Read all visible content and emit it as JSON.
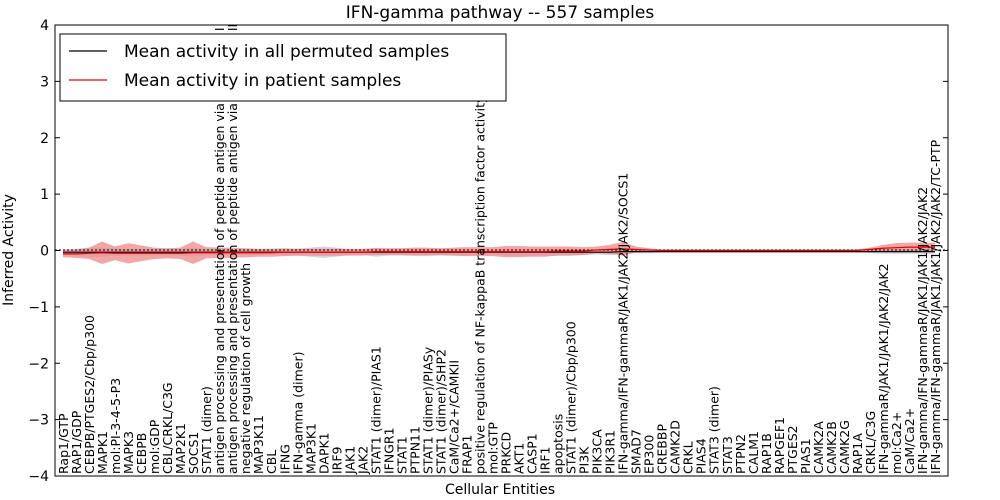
{
  "chart_data": {
    "type": "line",
    "title": "IFN-gamma pathway -- 557 samples",
    "xlabel": "Cellular Entities",
    "ylabel": "Inferred Activity",
    "ylim": [
      -4,
      4
    ],
    "yticks": [
      -4,
      -3,
      -2,
      -1,
      0,
      1,
      2,
      3,
      4
    ],
    "legend_position": "top-left",
    "colors": {
      "permuted": "#000000",
      "patient": "#e00000",
      "patient_band": "#ee8a8a",
      "permuted_band": "#c7c0d4"
    },
    "categories": [
      "Rap1/GTP",
      "RAP1/GDP",
      "CEBPB/PTGES2/Cbp/p300",
      "MAPK1",
      "mol:PI-3-4-5-P3",
      "MAPK3",
      "CEBPB",
      "mol:GDP",
      "CBL/CRKL/C3G",
      "MAP2K1",
      "SOCS1",
      "STAT1 (dimer)",
      "antigen processing and presentation of peptide antigen via MHC class I",
      "antigen processing and presentation of peptide antigen via MHC class II",
      "negative regulation of cell growth",
      "MAP3K11",
      "CBL",
      "IFNG",
      "IFN-gamma (dimer)",
      "MAP3K1",
      "DAPK1",
      "IRF9",
      "JAK1",
      "JAK2",
      "STAT1 (dimer)/PIAS1",
      "IFNGR1",
      "STAT1",
      "PTPN11",
      "STAT1 (dimer)/PIASy",
      "STAT1 (dimer)/SHP2",
      "CaM/Ca2+/CAMKII",
      "FRAP1",
      "positive regulation of NF-kappaB transcription factor activity",
      "mol:GTP",
      "PRKCD",
      "AKT1",
      "CASP1",
      "IRF1",
      "apoptosis",
      "STAT1 (dimer)/Cbp/p300",
      "PI3K",
      "PIK3CA",
      "PIK3R1",
      "IFN-gamma/IFN-gammaR/JAK1/JAK2/JAK2/SOCS1",
      "SMAD7",
      "EP300",
      "CREBBP",
      "CAMK2D",
      "CRKL",
      "PIAS4",
      "STAT3 (dimer)",
      "STAT3",
      "PTPN2",
      "CALM1",
      "RAP1B",
      "RAPGEF1",
      "PTGES2",
      "PIAS1",
      "CAMK2A",
      "CAMK2B",
      "CAMK2G",
      "RAP1A",
      "CRKL/C3G",
      "IFN-gammaR/JAK1/JAK1/JAK2/JAK2",
      "mol:Ca2+",
      "CaM/Ca2+",
      "IFN-gamma/IFN-gammaR/JAK1/JAK1/JAK2/JAK2",
      "IFN-gamma/IFN-gammaR/JAK1/JAK1/JAK2/JAK2/TC-PTP"
    ],
    "series": [
      {
        "name": "Mean activity in all permuted samples",
        "values": [
          -0.03,
          -0.03,
          -0.03,
          -0.03,
          -0.03,
          -0.03,
          -0.03,
          -0.03,
          -0.03,
          -0.03,
          -0.03,
          -0.03,
          -0.03,
          -0.03,
          -0.03,
          -0.03,
          -0.03,
          -0.03,
          -0.03,
          -0.03,
          -0.03,
          -0.03,
          -0.03,
          -0.03,
          -0.03,
          -0.03,
          -0.03,
          -0.03,
          -0.03,
          -0.03,
          -0.03,
          -0.03,
          -0.03,
          -0.03,
          -0.03,
          -0.03,
          -0.03,
          -0.03,
          -0.03,
          -0.03,
          -0.03,
          -0.03,
          -0.03,
          -0.02,
          -0.02,
          -0.02,
          -0.02,
          -0.02,
          -0.02,
          -0.02,
          -0.02,
          -0.02,
          -0.02,
          -0.02,
          -0.02,
          -0.02,
          -0.02,
          -0.02,
          -0.02,
          -0.02,
          -0.02,
          -0.02,
          -0.02,
          -0.02,
          -0.02,
          -0.02,
          -0.02,
          -0.02
        ],
        "band": [
          0.05,
          0.06,
          0.08,
          0.08,
          0.07,
          0.06,
          0.06,
          0.06,
          0.06,
          0.06,
          0.08,
          0.06,
          0.05,
          0.05,
          0.05,
          0.05,
          0.04,
          0.05,
          0.06,
          0.08,
          0.1,
          0.08,
          0.05,
          0.04,
          0.08,
          0.06,
          0.06,
          0.06,
          0.06,
          0.06,
          0.06,
          0.06,
          0.04,
          0.04,
          0.06,
          0.06,
          0.06,
          0.07,
          0.06,
          0.06,
          0.05,
          0.04,
          0.05,
          0.05,
          0.03,
          0.03,
          0.02,
          0.02,
          0.02,
          0.02,
          0.02,
          0.02,
          0.02,
          0.02,
          0.02,
          0.02,
          0.02,
          0.02,
          0.02,
          0.02,
          0.02,
          0.02,
          0.03,
          0.04,
          0.04,
          0.04,
          0.04,
          0.04
        ]
      },
      {
        "name": "Mean activity in patient samples",
        "values": [
          -0.06,
          -0.06,
          -0.05,
          -0.04,
          -0.05,
          -0.05,
          -0.05,
          -0.05,
          -0.05,
          -0.05,
          -0.04,
          -0.04,
          -0.04,
          -0.04,
          -0.04,
          -0.04,
          -0.04,
          -0.03,
          -0.03,
          -0.03,
          -0.03,
          -0.03,
          -0.03,
          -0.03,
          -0.02,
          -0.02,
          -0.02,
          -0.02,
          -0.02,
          -0.02,
          -0.02,
          -0.02,
          -0.02,
          -0.02,
          -0.02,
          -0.02,
          -0.02,
          -0.02,
          -0.01,
          -0.01,
          -0.01,
          0.01,
          0.02,
          0.03,
          0.02,
          0.01,
          0.0,
          0.0,
          0.0,
          0.0,
          0.0,
          0.0,
          0.0,
          0.0,
          0.0,
          0.0,
          0.0,
          0.0,
          0.0,
          0.0,
          0.0,
          0.0,
          0.02,
          0.04,
          0.05,
          0.06,
          0.06,
          0.06
        ],
        "band": [
          0.06,
          0.07,
          0.1,
          0.2,
          0.12,
          0.18,
          0.14,
          0.1,
          0.09,
          0.1,
          0.2,
          0.1,
          0.09,
          0.09,
          0.08,
          0.07,
          0.07,
          0.07,
          0.06,
          0.06,
          0.06,
          0.06,
          0.06,
          0.06,
          0.06,
          0.06,
          0.06,
          0.07,
          0.07,
          0.06,
          0.07,
          0.08,
          0.08,
          0.08,
          0.1,
          0.1,
          0.09,
          0.09,
          0.08,
          0.08,
          0.07,
          0.06,
          0.08,
          0.12,
          0.05,
          0.03,
          0.02,
          0.02,
          0.02,
          0.02,
          0.02,
          0.02,
          0.02,
          0.02,
          0.02,
          0.02,
          0.02,
          0.02,
          0.02,
          0.02,
          0.02,
          0.02,
          0.03,
          0.06,
          0.08,
          0.08,
          0.08,
          0.08
        ]
      }
    ]
  }
}
